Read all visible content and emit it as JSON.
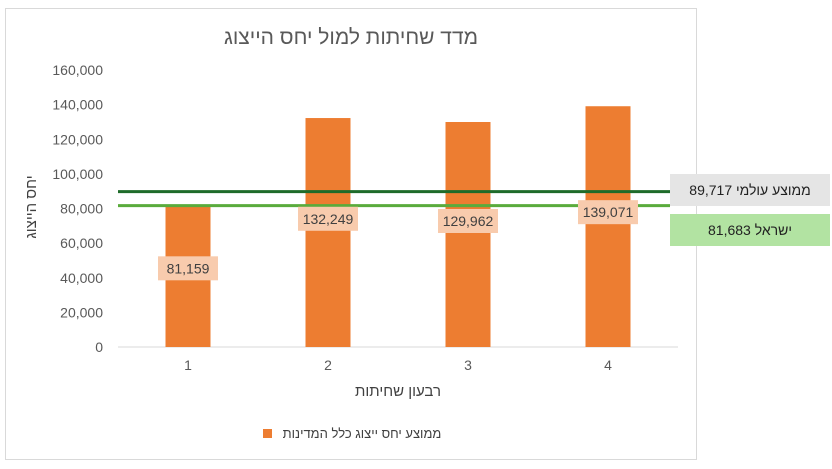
{
  "chart_data": {
    "type": "bar",
    "title": "מדד שחיתות למול יחס הייצוג",
    "xlabel": "רבעון שחיתות",
    "ylabel": "יחס הייצוג",
    "categories": [
      "1",
      "2",
      "3",
      "4"
    ],
    "series": [
      {
        "name": "ממוצע יחס ייצוג כלל המדינות",
        "values": [
          81159,
          132249,
          129962,
          139071
        ],
        "data_labels": [
          "81,159",
          "132,249",
          "129,962",
          "139,071"
        ],
        "color": "#ed7d31",
        "label_bg": "#f8cbad"
      }
    ],
    "ylim": [
      0,
      160000
    ],
    "yticks": [
      0,
      20000,
      40000,
      60000,
      80000,
      100000,
      120000,
      140000,
      160000
    ],
    "ytick_labels": [
      "0",
      "20,000",
      "40,000",
      "60,000",
      "80,000",
      "100,000",
      "120,000",
      "140,000",
      "160,000"
    ],
    "grid": false,
    "legend_position": "bottom",
    "reference_lines": [
      {
        "label": "ממוצע עולמי 89,717",
        "value": 89717,
        "color": "#1e6b2a"
      },
      {
        "label": "ישראל 81,683",
        "value": 81683,
        "color": "#5aab3c"
      }
    ]
  }
}
